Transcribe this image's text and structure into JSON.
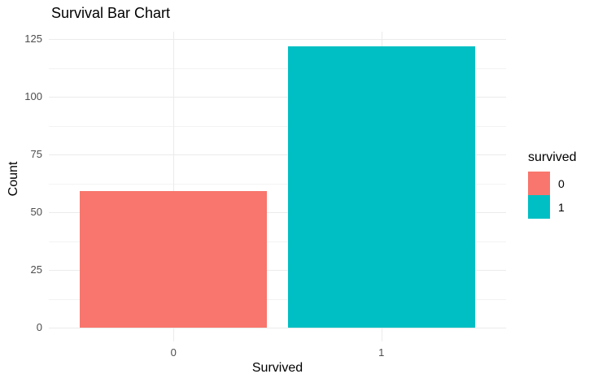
{
  "chart_data": {
    "type": "bar",
    "title": "Survival Bar Chart",
    "xlabel": "Survived",
    "ylabel": "Count",
    "categories": [
      "0",
      "1"
    ],
    "values": [
      59,
      122
    ],
    "series_name": "survived",
    "colors": [
      "#F8766D",
      "#00BFC4"
    ],
    "yticks": [
      0,
      25,
      50,
      75,
      100,
      125
    ],
    "ylim": [
      0,
      128
    ],
    "grid": "major and minor horizontal, major vertical at category centers",
    "legend": {
      "title": "survived",
      "position": "right",
      "items": [
        {
          "label": "0",
          "color": "#F8766D"
        },
        {
          "label": "1",
          "color": "#00BFC4"
        }
      ]
    }
  },
  "style_colors": {
    "background": "#FFFFFF",
    "grid_major": "#EBEBEB",
    "grid_minor": "#F3F3F3",
    "tick_label": "#4D4D4D",
    "text": "#000000"
  }
}
